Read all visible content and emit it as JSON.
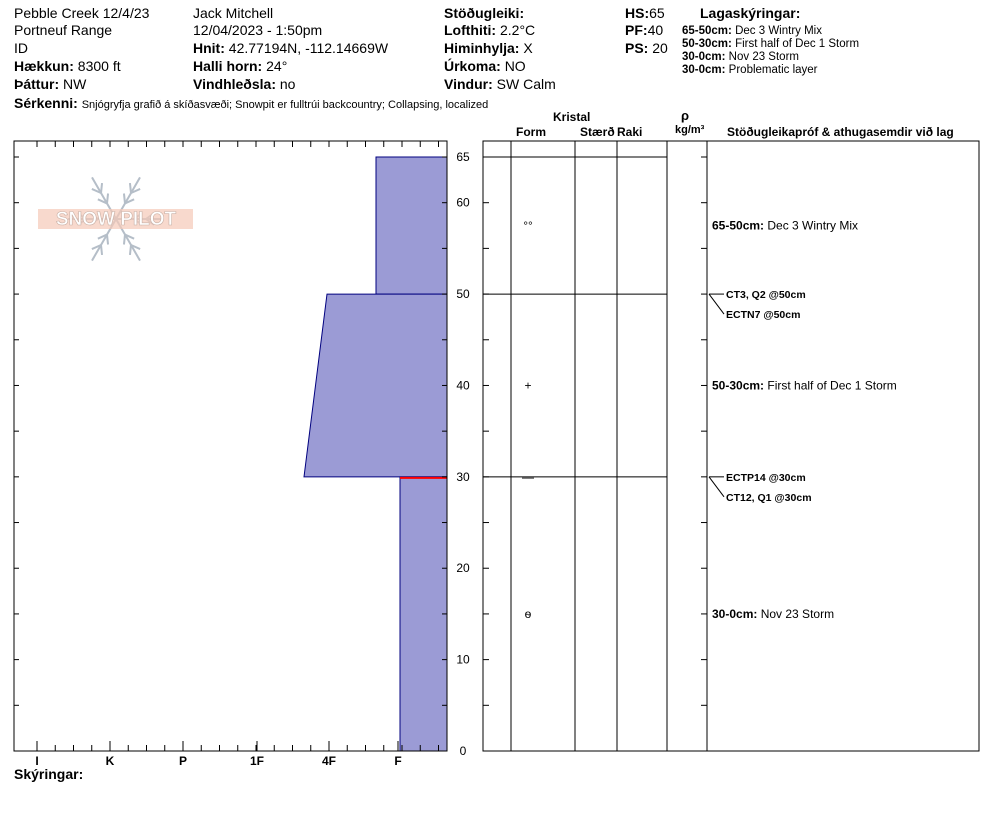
{
  "header": {
    "location": "Pebble Creek 12/4/23",
    "range": "Portneuf Range",
    "state": "ID",
    "elevation_label": "Hækkun:",
    "elevation": "8300 ft",
    "aspect_label": "Þáttur:",
    "aspect": "NW",
    "observer": "Jack Mitchell",
    "datetime": "12/04/2023 - 1:50pm",
    "coords_label": "Hnit:",
    "coords": "42.77194N, -112.14669W",
    "slope_label": "Halli horn:",
    "slope": "24°",
    "wind_loading_label": "Vindhleðsla:",
    "wind_loading": "no",
    "stability_label": "Stöðugleiki:",
    "stability": "",
    "air_temp_label": "Lofthiti:",
    "air_temp": "2.2°C",
    "sky_label": "Himinhylja:",
    "sky": "X",
    "precip_label": "Úrkoma:",
    "precip": "NO",
    "wind_label": "Vindur:",
    "wind": "SW Calm",
    "hs_label": "HS:",
    "hs": "65",
    "pf_label": "PF:",
    "pf": "40",
    "ps_label": "PS:",
    "ps": "20",
    "features_label": "Sérkenni:",
    "features": "Snjógryfja grafið á skíðasvæði;  Snowpit er fulltrúi backcountry;  Collapsing, localized"
  },
  "legend": {
    "title": "Lagaskýringar:",
    "items": [
      {
        "range": "65-50cm:",
        "text": "Dec 3 Wintry Mix"
      },
      {
        "range": "50-30cm:",
        "text": "First half of Dec 1 Storm"
      },
      {
        "range": "30-0cm:",
        "text": "Nov 23 Storm"
      },
      {
        "range": "30-0cm:",
        "text": "Problematic layer"
      }
    ]
  },
  "columns": {
    "crystal": "Kristal",
    "form": "Form",
    "size": "Stærð",
    "moisture": "Raki",
    "rho": "ρ",
    "density_unit": "kg/m³",
    "tests": "Stöðugleikapróf & athugasemdir við lag"
  },
  "footer": {
    "legend_label": "Skýringar:"
  },
  "logo": {
    "text": "SNOW PILOT"
  },
  "chart_data": {
    "type": "bar",
    "orientation": "horizontal-hardness-profile",
    "y_axis": {
      "ylim": [
        0,
        65
      ],
      "ticks": [
        0,
        10,
        20,
        30,
        40,
        50,
        60,
        65
      ]
    },
    "x_axis": {
      "categories": [
        "I",
        "K",
        "P",
        "1F",
        "4F",
        "F"
      ]
    },
    "layers": [
      {
        "top": 65,
        "bottom": 50,
        "hardness_top": 1.6,
        "hardness_bottom": 1.6
      },
      {
        "top": 50,
        "bottom": 30,
        "hardness_top": 3.2,
        "hardness_bottom": 3.9
      },
      {
        "top": 30,
        "bottom": 0,
        "hardness_top": 1.3,
        "hardness_bottom": 1.3
      }
    ],
    "problematic_layer_depth": 30,
    "grain_forms": [
      {
        "depth": 57.5,
        "symbol": "°°"
      },
      {
        "depth": 40,
        "symbol": "+"
      },
      {
        "depth": 30,
        "symbol": "—"
      },
      {
        "depth": 15,
        "symbol": "ѳ"
      }
    ],
    "layer_boundaries": [
      65,
      50,
      30
    ],
    "comments": [
      {
        "depth": 57.5,
        "range": "65-50cm:",
        "text": "Dec 3 Wintry Mix"
      },
      {
        "depth": 40,
        "range": "50-30cm:",
        "text": "First half of Dec 1 Storm"
      },
      {
        "depth": 15,
        "range": "30-0cm:",
        "text": "Nov 23 Storm"
      }
    ],
    "tests": [
      {
        "depth": 50,
        "labels": [
          "CT3, Q2 @50cm",
          "ECTN7 @50cm"
        ]
      },
      {
        "depth": 30,
        "labels": [
          "ECTP14 @30cm",
          "CT12, Q1 @30cm"
        ]
      }
    ],
    "colors": {
      "fill": "#9b9bd5",
      "stroke": "#00007f",
      "problem": "#ff0000"
    }
  }
}
